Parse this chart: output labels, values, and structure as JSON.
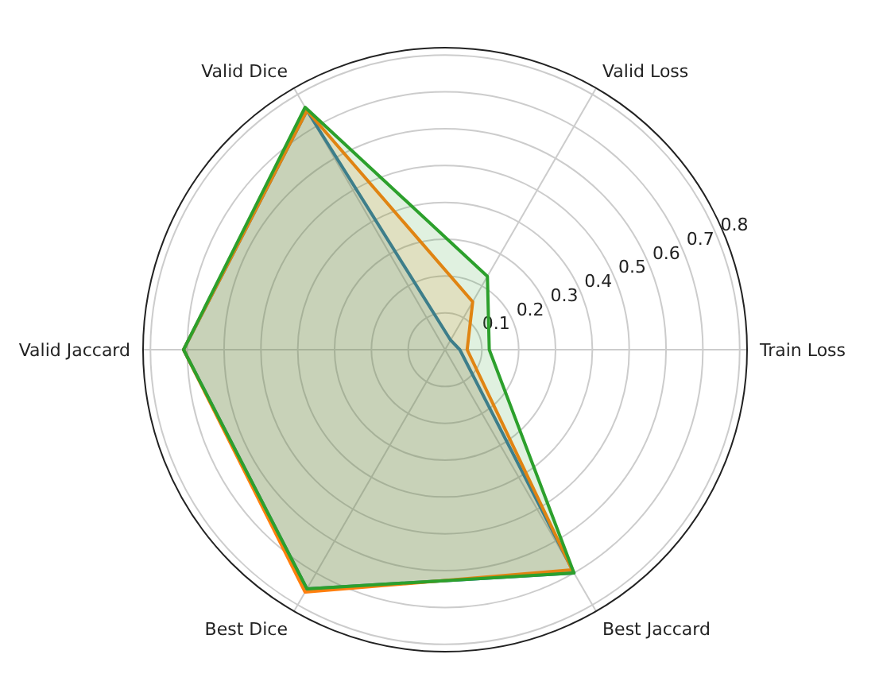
{
  "chart_data": {
    "type": "radar",
    "categories": [
      "Valid Loss",
      "Train Loss",
      "Best Jaccard",
      "Best Dice",
      "Valid Jaccard",
      "Valid Dice"
    ],
    "series": [
      {
        "color": "#1f77b4",
        "values": [
          0.03,
          0.04,
          0.7,
          0.75,
          0.71,
          0.75
        ]
      },
      {
        "color": "#ff7f0e",
        "values": [
          0.15,
          0.06,
          0.69,
          0.76,
          0.71,
          0.75
        ]
      },
      {
        "color": "#2ca02c",
        "values": [
          0.23,
          0.12,
          0.7,
          0.75,
          0.71,
          0.76
        ]
      }
    ],
    "ylim": [
      0,
      0.82
    ],
    "yticks": [
      0.1,
      0.2,
      0.3,
      0.4,
      0.5,
      0.6,
      0.7,
      0.8
    ],
    "grid": true,
    "legend": false,
    "marker": "none",
    "line_style": "solid"
  }
}
